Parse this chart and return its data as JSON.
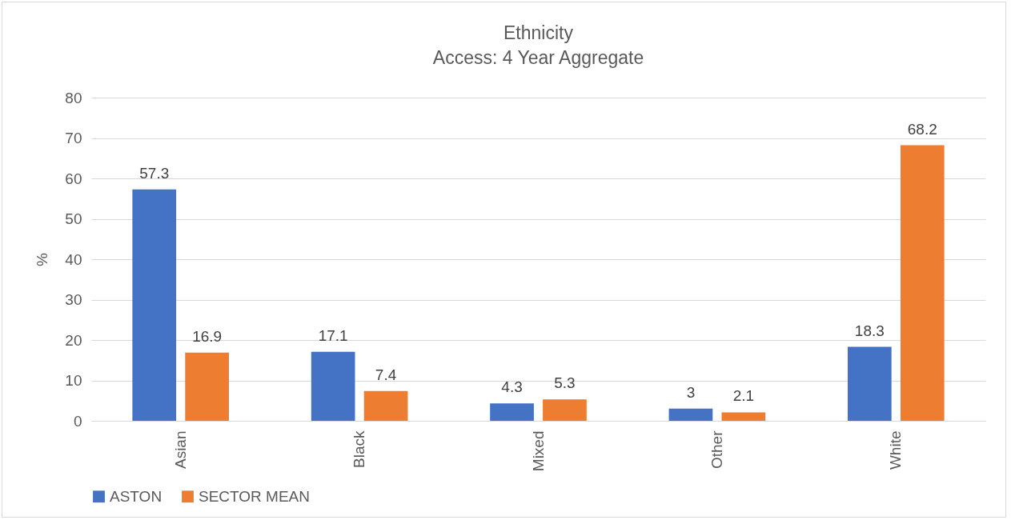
{
  "chart_data": {
    "type": "bar",
    "title": "Ethnicity",
    "subtitle": "Access: 4 Year Aggregate",
    "ylabel": "%",
    "categories": [
      "Asian",
      "Black",
      "Mixed",
      "Other",
      "White"
    ],
    "series": [
      {
        "name": "ASTON",
        "color": "#4472c4",
        "values": [
          57.3,
          17.1,
          4.3,
          3,
          18.3
        ]
      },
      {
        "name": "SECTOR MEAN",
        "color": "#ed7d31",
        "values": [
          16.9,
          7.4,
          5.3,
          2.1,
          68.2
        ]
      }
    ],
    "ylim": [
      0,
      80
    ],
    "yticks": [
      0,
      10,
      20,
      30,
      40,
      50,
      60,
      70,
      80
    ],
    "grid": "y",
    "legend": "bottom",
    "data_labels": true
  }
}
